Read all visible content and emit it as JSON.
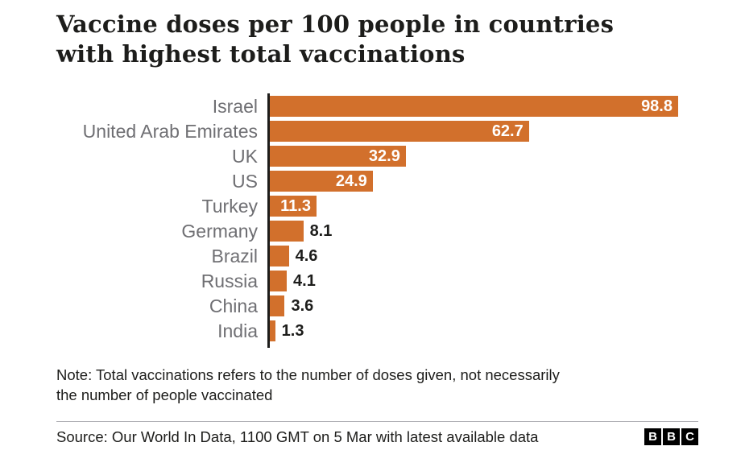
{
  "title": "Vaccine doses per 100 people in countries\nwith highest total vaccinations",
  "chart_data": {
    "type": "bar",
    "orientation": "horizontal",
    "title": "Vaccine doses per 100 people in countries with highest total vaccinations",
    "categories": [
      "Israel",
      "United Arab Emirates",
      "UK",
      "US",
      "Turkey",
      "Germany",
      "Brazil",
      "Russia",
      "China",
      "India"
    ],
    "values": [
      98.8,
      62.7,
      32.9,
      24.9,
      11.3,
      8.1,
      4.6,
      4.1,
      3.6,
      1.3
    ],
    "value_labels": [
      "98.8",
      "62.7",
      "32.9",
      "24.9",
      "11.3",
      "8.1",
      "4.6",
      "4.1",
      "3.6",
      "1.3"
    ],
    "xlabel": "",
    "ylabel": "",
    "xlim": [
      0,
      98.8
    ],
    "grid": false,
    "legend": "none",
    "bar_color": "#d2702c",
    "inside_label_threshold": 10
  },
  "note": "Note: Total vaccinations refers to the number of doses given, not necessarily\nthe number of people vaccinated",
  "source": "Source: Our World In Data, 1100 GMT on 5 Mar with latest available data",
  "logo": {
    "letters": [
      "B",
      "B",
      "C"
    ]
  },
  "colors": {
    "bar": "#d2702c",
    "title_text": "#1d1d1b",
    "country_label": "#6f6f73",
    "axis_line": "#1d1d1b",
    "divider": "#b0b0b6"
  }
}
